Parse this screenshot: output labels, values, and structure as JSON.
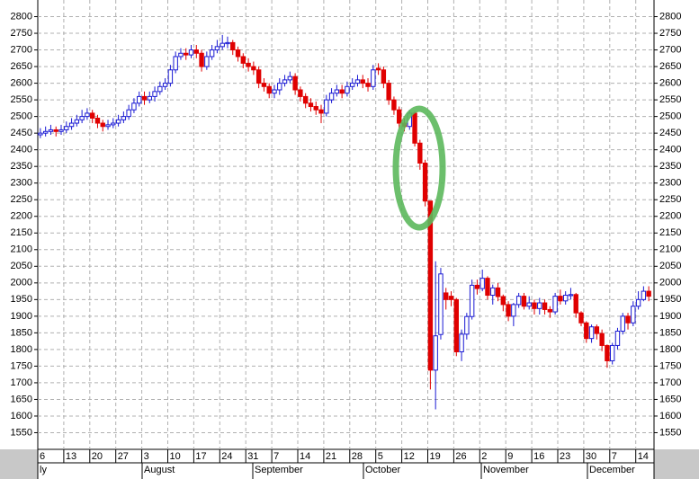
{
  "chart_data": {
    "type": "candlestick",
    "up_color": "#1a1ad4",
    "down_color": "#e00000",
    "ylim": [
      1500,
      2850
    ],
    "yticks": [
      1550,
      1600,
      1650,
      1700,
      1750,
      1800,
      1850,
      1900,
      1950,
      2000,
      2050,
      2100,
      2150,
      2200,
      2250,
      2300,
      2350,
      2400,
      2450,
      2500,
      2550,
      2600,
      2650,
      2700,
      2750,
      2800
    ],
    "grid": true,
    "xticks": [
      "6",
      "13",
      "20",
      "27",
      "3",
      "10",
      "17",
      "24",
      "31",
      "7",
      "14",
      "21",
      "28",
      "5",
      "12",
      "19",
      "26",
      "2",
      "9",
      "16",
      "23",
      "30",
      "7",
      "14"
    ],
    "months": [
      "ly",
      "August",
      "September",
      "October",
      "November",
      "December"
    ],
    "candles": [
      [
        2445,
        2465,
        2435,
        2450
      ],
      [
        2450,
        2470,
        2440,
        2455
      ],
      [
        2455,
        2475,
        2445,
        2460
      ],
      [
        2460,
        2470,
        2440,
        2455
      ],
      [
        2455,
        2475,
        2445,
        2460
      ],
      [
        2460,
        2485,
        2450,
        2470
      ],
      [
        2470,
        2495,
        2460,
        2480
      ],
      [
        2480,
        2505,
        2470,
        2490
      ],
      [
        2490,
        2520,
        2480,
        2500
      ],
      [
        2500,
        2525,
        2490,
        2510
      ],
      [
        2510,
        2520,
        2480,
        2495
      ],
      [
        2495,
        2505,
        2465,
        2480
      ],
      [
        2480,
        2490,
        2455,
        2470
      ],
      [
        2470,
        2490,
        2460,
        2475
      ],
      [
        2475,
        2495,
        2465,
        2480
      ],
      [
        2480,
        2505,
        2470,
        2490
      ],
      [
        2490,
        2515,
        2480,
        2500
      ],
      [
        2500,
        2535,
        2490,
        2520
      ],
      [
        2520,
        2555,
        2510,
        2540
      ],
      [
        2540,
        2575,
        2530,
        2560
      ],
      [
        2560,
        2575,
        2535,
        2550
      ],
      [
        2550,
        2575,
        2540,
        2560
      ],
      [
        2560,
        2590,
        2545,
        2575
      ],
      [
        2575,
        2605,
        2565,
        2590
      ],
      [
        2590,
        2615,
        2580,
        2600
      ],
      [
        2600,
        2655,
        2590,
        2640
      ],
      [
        2640,
        2695,
        2630,
        2680
      ],
      [
        2680,
        2705,
        2670,
        2690
      ],
      [
        2690,
        2705,
        2670,
        2685
      ],
      [
        2685,
        2715,
        2675,
        2700
      ],
      [
        2700,
        2715,
        2675,
        2690
      ],
      [
        2690,
        2700,
        2635,
        2650
      ],
      [
        2650,
        2695,
        2640,
        2680
      ],
      [
        2680,
        2715,
        2670,
        2700
      ],
      [
        2700,
        2730,
        2690,
        2710
      ],
      [
        2710,
        2745,
        2700,
        2720
      ],
      [
        2720,
        2740,
        2705,
        2722
      ],
      [
        2722,
        2730,
        2685,
        2700
      ],
      [
        2700,
        2710,
        2665,
        2680
      ],
      [
        2680,
        2690,
        2645,
        2660
      ],
      [
        2660,
        2675,
        2635,
        2650
      ],
      [
        2650,
        2665,
        2625,
        2640
      ],
      [
        2640,
        2650,
        2585,
        2600
      ],
      [
        2600,
        2615,
        2575,
        2590
      ],
      [
        2590,
        2600,
        2555,
        2570
      ],
      [
        2570,
        2595,
        2555,
        2580
      ],
      [
        2580,
        2615,
        2565,
        2600
      ],
      [
        2600,
        2625,
        2590,
        2610
      ],
      [
        2610,
        2635,
        2600,
        2620
      ],
      [
        2620,
        2630,
        2565,
        2580
      ],
      [
        2580,
        2590,
        2545,
        2560
      ],
      [
        2560,
        2570,
        2525,
        2540
      ],
      [
        2540,
        2555,
        2515,
        2530
      ],
      [
        2530,
        2545,
        2505,
        2520
      ],
      [
        2520,
        2535,
        2480,
        2510
      ],
      [
        2510,
        2565,
        2500,
        2550
      ],
      [
        2550,
        2585,
        2540,
        2570
      ],
      [
        2570,
        2595,
        2560,
        2580
      ],
      [
        2580,
        2595,
        2555,
        2570
      ],
      [
        2570,
        2605,
        2560,
        2590
      ],
      [
        2590,
        2615,
        2580,
        2600
      ],
      [
        2600,
        2625,
        2590,
        2610
      ],
      [
        2610,
        2625,
        2585,
        2600
      ],
      [
        2600,
        2615,
        2575,
        2590
      ],
      [
        2590,
        2655,
        2580,
        2640
      ],
      [
        2645,
        2660,
        2625,
        2640
      ],
      [
        2640,
        2650,
        2585,
        2600
      ],
      [
        2600,
        2610,
        2535,
        2550
      ],
      [
        2550,
        2560,
        2505,
        2520
      ],
      [
        2520,
        2530,
        2465,
        2480
      ],
      [
        2480,
        2495,
        2455,
        2470
      ],
      [
        2470,
        2520,
        2460,
        2510
      ],
      [
        2510,
        2515,
        2410,
        2420
      ],
      [
        2420,
        2430,
        2340,
        2360
      ],
      [
        2360,
        2370,
        2230,
        2246
      ],
      [
        2246,
        2246,
        1680,
        1738
      ],
      [
        1738,
        2065,
        1620,
        1841
      ],
      [
        1845,
        2045,
        1830,
        2027
      ],
      [
        1970,
        1985,
        1920,
        1950
      ],
      [
        1960,
        1975,
        1930,
        1950
      ],
      [
        1950,
        1955,
        1780,
        1793
      ],
      [
        1793,
        1860,
        1765,
        1846
      ],
      [
        1846,
        1910,
        1830,
        1899
      ],
      [
        1899,
        2010,
        1890,
        1993
      ],
      [
        1993,
        2010,
        1965,
        1983
      ],
      [
        1983,
        2040,
        1975,
        2014
      ],
      [
        2014,
        2020,
        1950,
        1963
      ],
      [
        1963,
        1995,
        1935,
        1985
      ],
      [
        1985,
        2000,
        1945,
        1959
      ],
      [
        1959,
        1965,
        1915,
        1935
      ],
      [
        1935,
        1945,
        1885,
        1900
      ],
      [
        1900,
        1940,
        1870,
        1935
      ],
      [
        1935,
        1970,
        1925,
        1960
      ],
      [
        1960,
        1970,
        1920,
        1930
      ],
      [
        1930,
        1960,
        1920,
        1940
      ],
      [
        1940,
        1950,
        1905,
        1923
      ],
      [
        1923,
        1955,
        1905,
        1940
      ],
      [
        1940,
        1950,
        1905,
        1920
      ],
      [
        1920,
        1930,
        1895,
        1913
      ],
      [
        1913,
        1970,
        1905,
        1960
      ],
      [
        1960,
        1980,
        1935,
        1946
      ],
      [
        1946,
        1975,
        1935,
        1963
      ],
      [
        1963,
        1985,
        1950,
        1965
      ],
      [
        1965,
        1970,
        1895,
        1910
      ],
      [
        1910,
        1915,
        1870,
        1880
      ],
      [
        1880,
        1885,
        1820,
        1833
      ],
      [
        1833,
        1875,
        1820,
        1868
      ],
      [
        1868,
        1875,
        1830,
        1848
      ],
      [
        1848,
        1860,
        1795,
        1812
      ],
      [
        1812,
        1815,
        1745,
        1766
      ],
      [
        1766,
        1820,
        1755,
        1812
      ],
      [
        1812,
        1865,
        1800,
        1855
      ],
      [
        1855,
        1910,
        1845,
        1900
      ],
      [
        1900,
        1910,
        1860,
        1880
      ],
      [
        1880,
        1945,
        1870,
        1930
      ],
      [
        1930,
        1975,
        1920,
        1950
      ],
      [
        1950,
        1990,
        1945,
        1975
      ],
      [
        1975,
        1990,
        1945,
        1960
      ]
    ]
  }
}
